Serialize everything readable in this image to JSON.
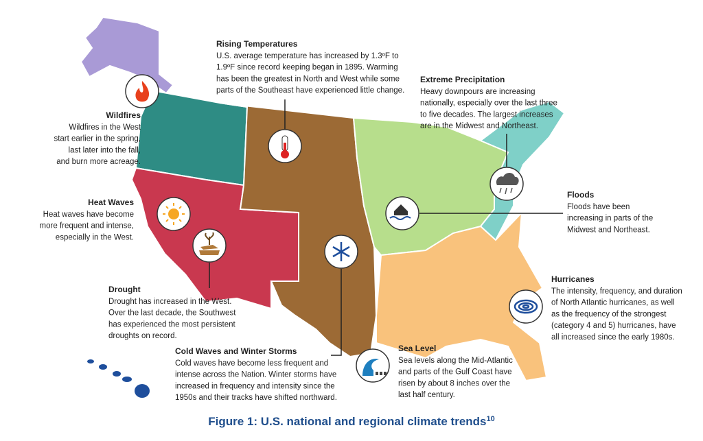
{
  "caption": {
    "text": "Figure 1: U.S. national and regional climate trends",
    "footnote": "10"
  },
  "callouts": [
    {
      "title": "Rising Temperatures",
      "lines": [
        "U.S. average temperature has increased by 1.3ºF to",
        "1.9ºF since record keeping began in 1895. Warming",
        "has been the greatest in North and West while some",
        "parts of the Southeast have experienced little change."
      ]
    },
    {
      "title": "Extreme Precipitation",
      "lines": [
        "Heavy downpours are increasing",
        "nationally, especially over the last three",
        "to five decades. The largest increases",
        "are in the Midwest and Northeast."
      ]
    },
    {
      "title": "Wildfires",
      "lines": [
        "Wildfires in the West",
        "start earlier in the spring,",
        "last later into the fall,",
        "and burn more acreage."
      ]
    },
    {
      "title": "Heat Waves",
      "lines": [
        "Heat waves have become",
        "more frequent and intense,",
        "especially in the West."
      ]
    },
    {
      "title": "Floods",
      "lines": [
        "Floods have been",
        "increasing in parts of the",
        "Midwest and Northeast."
      ]
    },
    {
      "title": "Drought",
      "lines": [
        "Drought has increased in the West.",
        "Over the last decade, the Southwest",
        "has experienced the most persistent",
        "droughts on record."
      ]
    },
    {
      "title": "Hurricanes",
      "lines": [
        "The intensity, frequency, and duration",
        "of North Atlantic hurricanes, as well",
        "as the frequency of the strongest",
        "(category 4 and 5) hurricanes, have",
        "all increased since the early 1980s."
      ]
    },
    {
      "title": "Sea Level",
      "lines": [
        "Sea levels along the Mid-Atlantic",
        "and parts of the Gulf Coast have",
        "risen by about 8 inches over the",
        "last half century."
      ]
    },
    {
      "title": "Cold Waves and Winter Storms",
      "lines": [
        "Cold waves have become less frequent and",
        "intense across the Nation. Winter storms have",
        "increased in frequency and intensity since the",
        "1950s and their tracks have shifted northward."
      ]
    }
  ]
}
